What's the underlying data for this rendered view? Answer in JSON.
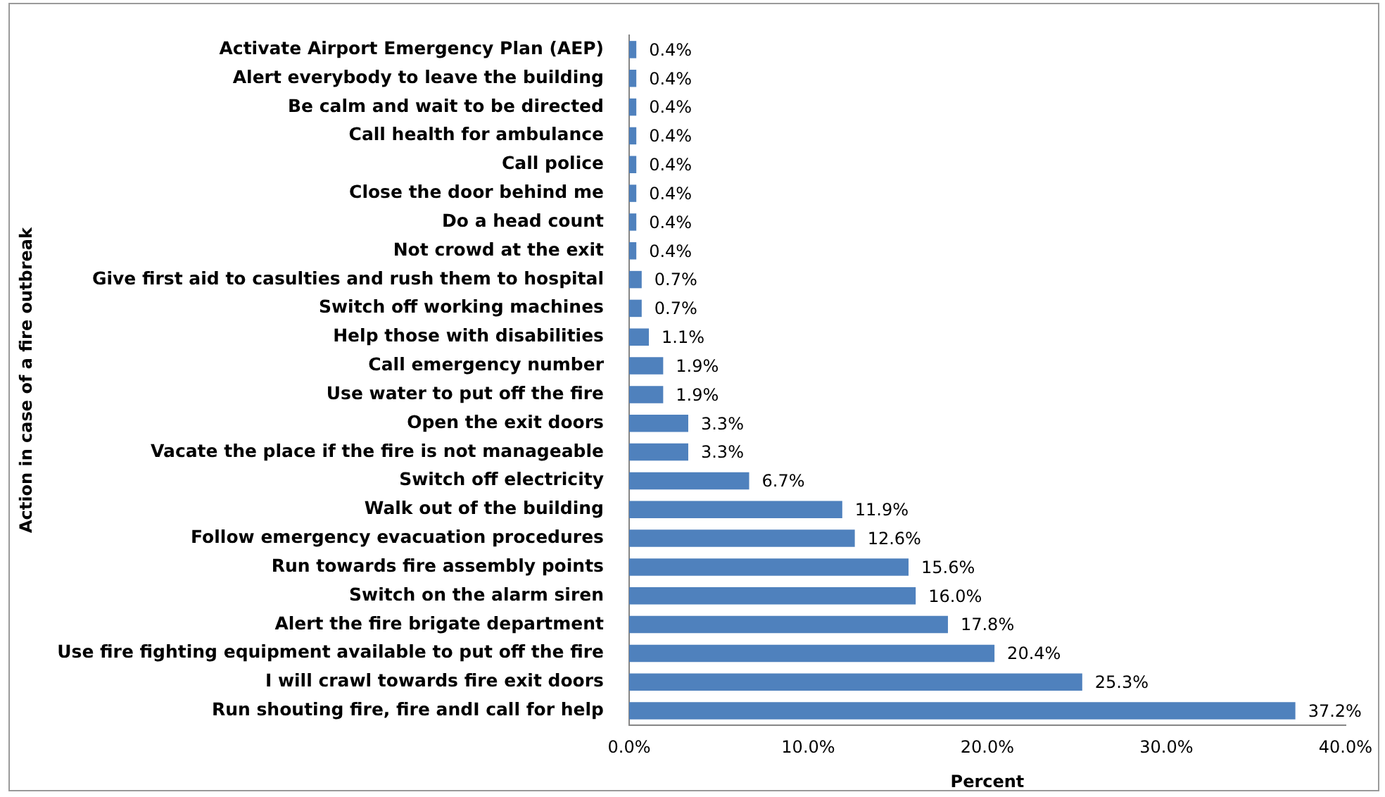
{
  "chart_data": {
    "type": "bar",
    "orientation": "horizontal",
    "xlabel": "Percent",
    "ylabel": "Action in case of a fire outbreak",
    "color": "#4f81bd",
    "categories": [
      "Activate Airport Emergency Plan (AEP)",
      "Alert everybody to leave the building",
      "Be calm and wait to be directed",
      "Call health for ambulance",
      "Call police",
      "Close the door behind me",
      "Do a head count",
      "Not crowd at the exit",
      "Give first aid to casulties and rush them to hospital",
      "Switch off working machines",
      "Help those with disabilities",
      "Call emergency number",
      "Use water to put off the fire",
      "Open the exit doors",
      "Vacate the place if the fire is not manageable",
      "Switch off electricity",
      "Walk out of the building",
      "Follow emergency evacuation procedures",
      "Run towards fire assembly points",
      "Switch on the alarm siren",
      "Alert the fire brigate department",
      "Use fire fighting equipment available to put off the fire",
      "I will crawl towards fire exit doors",
      "Run shouting fire, fire andI call for help"
    ],
    "values": [
      0.4,
      0.4,
      0.4,
      0.4,
      0.4,
      0.4,
      0.4,
      0.4,
      0.7,
      0.7,
      1.1,
      1.9,
      1.9,
      3.3,
      3.3,
      6.7,
      11.9,
      12.6,
      15.6,
      16.0,
      17.8,
      20.4,
      25.3,
      37.2
    ],
    "value_labels": [
      "0.4%",
      "0.4%",
      "0.4%",
      "0.4%",
      "0.4%",
      "0.4%",
      "0.4%",
      "0.4%",
      "0.7%",
      "0.7%",
      "1.1%",
      "1.9%",
      "1.9%",
      "3.3%",
      "3.3%",
      "6.7%",
      "11.9%",
      "12.6%",
      "15.6%",
      "16.0%",
      "17.8%",
      "20.4%",
      "25.3%",
      "37.2%"
    ],
    "xlim": [
      0,
      40
    ],
    "xticks": [
      {
        "value": 0,
        "label": "0.0%"
      },
      {
        "value": 10,
        "label": "10.0%"
      },
      {
        "value": 20,
        "label": "20.0%"
      },
      {
        "value": 30,
        "label": "30.0%"
      },
      {
        "value": 40,
        "label": "40.0%"
      }
    ]
  }
}
